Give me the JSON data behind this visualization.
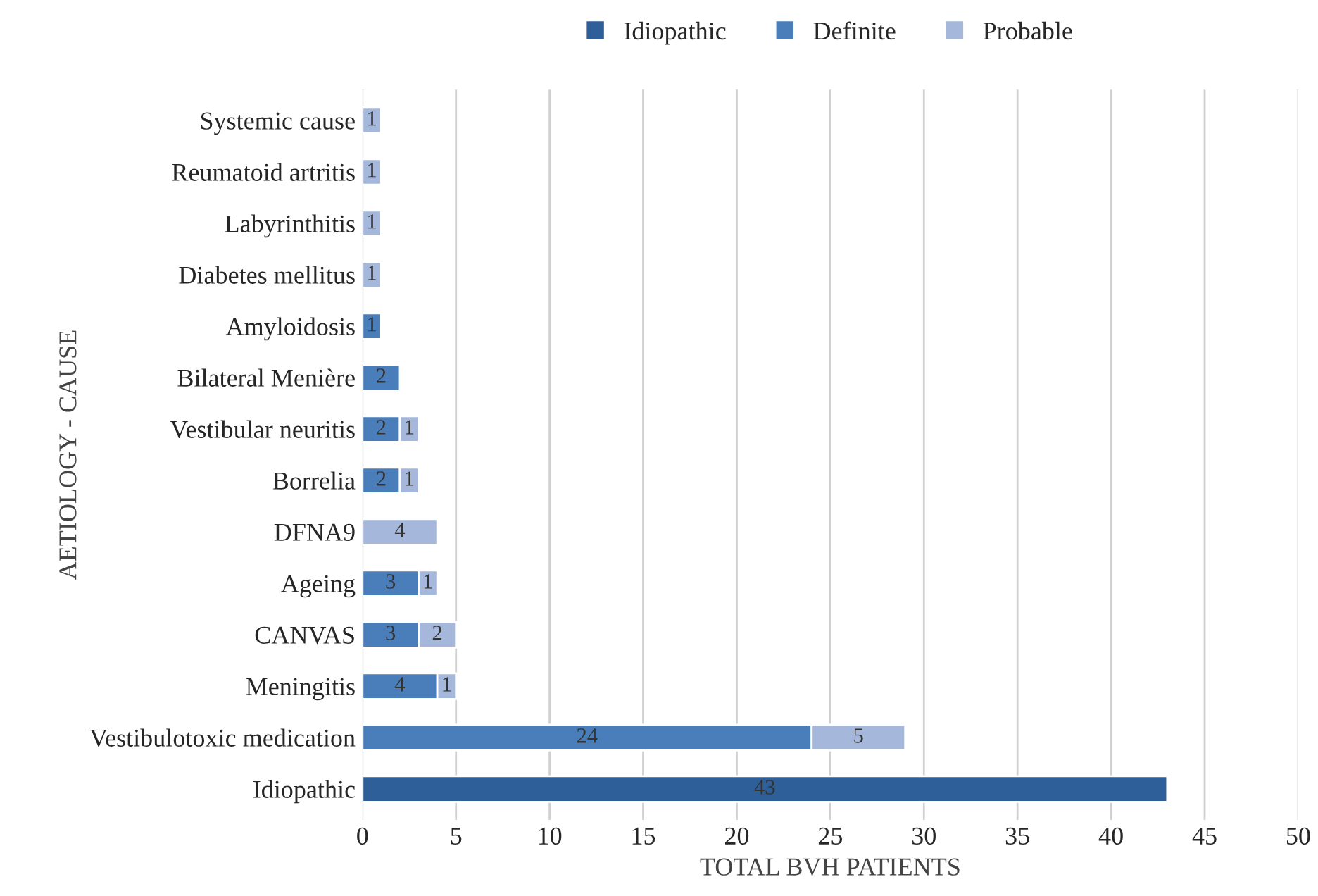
{
  "chart_data": {
    "type": "bar",
    "orientation": "horizontal",
    "stacked": true,
    "xlabel": "TOTAL BVH PATIENTS",
    "ylabel": "AETIOLOGY - CAUSE",
    "categories": [
      "Systemic cause",
      "Reumatoid artritis",
      "Labyrinthitis",
      "Diabetes mellitus",
      "Amyloidosis",
      "Bilateral Menière",
      "Vestibular neuritis",
      "Borrelia",
      "DFNA9",
      "Ageing",
      "CANVAS",
      "Meningitis",
      "Vestibulotoxic medication",
      "Idiopathic"
    ],
    "series": [
      {
        "name": "Idiopathic",
        "color": "#2f5f98",
        "values": [
          null,
          null,
          null,
          null,
          null,
          null,
          null,
          null,
          null,
          null,
          null,
          null,
          null,
          43
        ]
      },
      {
        "name": "Definite",
        "color": "#4a7ebb",
        "values": [
          null,
          null,
          null,
          null,
          1,
          2,
          2,
          2,
          null,
          3,
          3,
          4,
          24,
          null
        ]
      },
      {
        "name": "Probable",
        "color": "#a5b8db",
        "values": [
          1,
          1,
          1,
          1,
          null,
          null,
          1,
          1,
          4,
          1,
          2,
          1,
          5,
          null
        ]
      }
    ],
    "xlim": [
      0,
      50
    ],
    "xticks": [
      0,
      5,
      10,
      15,
      20,
      25,
      30,
      35,
      40,
      45,
      50
    ],
    "grid": "x",
    "legend": "top",
    "data_labels": true
  }
}
